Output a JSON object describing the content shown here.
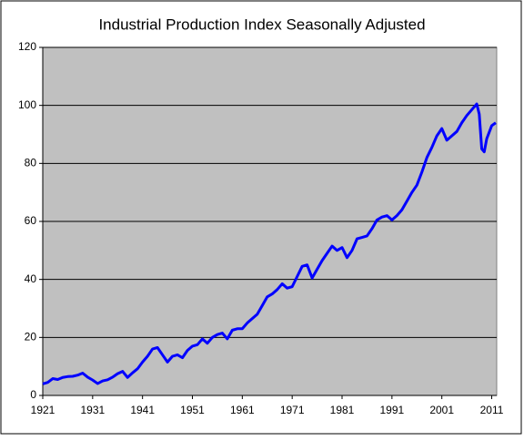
{
  "chart_data": {
    "type": "line",
    "title": "Industrial Production Index Seasonally Adjusted",
    "x": [
      1921,
      1922,
      1923,
      1924,
      1925,
      1926,
      1927,
      1928,
      1929,
      1930,
      1931,
      1932,
      1933,
      1934,
      1935,
      1936,
      1937,
      1938,
      1939,
      1940,
      1941,
      1942,
      1943,
      1944,
      1945,
      1946,
      1947,
      1948,
      1949,
      1950,
      1951,
      1952,
      1953,
      1954,
      1955,
      1956,
      1957,
      1958,
      1959,
      1960,
      1961,
      1962,
      1963,
      1964,
      1965,
      1966,
      1967,
      1968,
      1969,
      1970,
      1971,
      1972,
      1973,
      1974,
      1975,
      1976,
      1977,
      1978,
      1979,
      1980,
      1981,
      1982,
      1983,
      1984,
      1985,
      1986,
      1987,
      1988,
      1989,
      1990,
      1991,
      1992,
      1993,
      1994,
      1995,
      1996,
      1997,
      1998,
      1999,
      2000,
      2001,
      2002,
      2003,
      2004,
      2005,
      2006,
      2007,
      2008,
      2008.5,
      2009,
      2009.5,
      2010,
      2011,
      2011.8
    ],
    "series": [
      {
        "name": "Industrial Production Index",
        "color": "#0000ff",
        "values": [
          4,
          4.5,
          5.8,
          5.5,
          6.2,
          6.5,
          6.6,
          7,
          7.7,
          6.3,
          5.3,
          4.1,
          5,
          5.4,
          6.3,
          7.5,
          8.3,
          6.2,
          7.8,
          9.2,
          11.5,
          13.5,
          16,
          16.5,
          14,
          11.5,
          13.5,
          14,
          13,
          15.5,
          17,
          17.5,
          19.5,
          18,
          20,
          21,
          21.5,
          19.5,
          22.5,
          23,
          23,
          25,
          26.5,
          28,
          31,
          34,
          35,
          36.5,
          38.5,
          37,
          37.5,
          41,
          44.5,
          45,
          40.5,
          43.5,
          46.5,
          49,
          51.5,
          50,
          51,
          47.5,
          50,
          54,
          54.5,
          55,
          57.5,
          60.5,
          61.5,
          62,
          60.5,
          62,
          64,
          67,
          70,
          72.5,
          77,
          82,
          85.5,
          89.5,
          92,
          88,
          89.5,
          91,
          94,
          96.5,
          98.5,
          100.5,
          97,
          85,
          84,
          88.5,
          93,
          94
        ]
      }
    ],
    "xlim": [
      1921,
      2012
    ],
    "xticks": [
      1921,
      1931,
      1941,
      1951,
      1961,
      1971,
      1981,
      1991,
      2001,
      2011
    ],
    "ylim": [
      0,
      120
    ],
    "yticks": [
      0,
      20,
      40,
      60,
      80,
      100,
      120
    ],
    "grid": true
  }
}
